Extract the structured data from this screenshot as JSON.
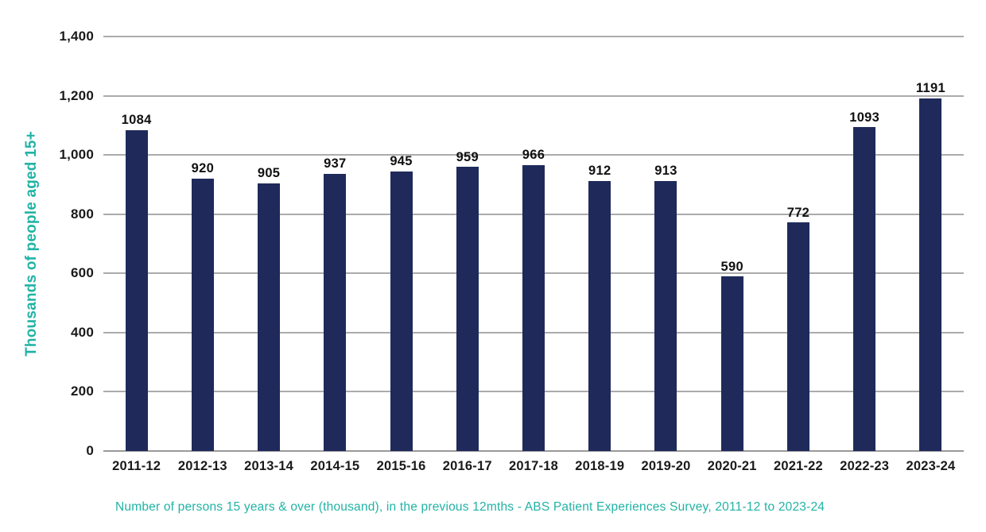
{
  "chart_data": {
    "type": "bar",
    "categories": [
      "2011-12",
      "2012-13",
      "2013-14",
      "2014-15",
      "2015-16",
      "2016-17",
      "2017-18",
      "2018-19",
      "2019-20",
      "2020-21",
      "2021-22",
      "2022-23",
      "2023-24"
    ],
    "values": [
      1084,
      920,
      905,
      937,
      945,
      959,
      966,
      912,
      913,
      590,
      772,
      1093,
      1191
    ],
    "value_labels": [
      "1084",
      "920",
      "905",
      "937",
      "945",
      "959",
      "966",
      "912",
      "913",
      "590",
      "772",
      "1093",
      "1191"
    ],
    "title": "",
    "xlabel": "",
    "ylabel": "Thousands of people aged 15+",
    "caption": "Number of persons 15 years & over (thousand), in the previous 12mths - ABS Patient Experiences Survey, 2011-12 to 2023-24",
    "ylim": [
      0,
      1400
    ],
    "ytick_step": 200,
    "yticks": [
      0,
      200,
      400,
      600,
      800,
      1000,
      1200,
      1400
    ],
    "ytick_labels": [
      "0",
      "200",
      "400",
      "600",
      "800",
      "1,000",
      "1,200",
      "1,400"
    ],
    "grid": true,
    "legend": "none",
    "colors": {
      "bar": "#1f2a5b",
      "accent_teal": "#21b3a5",
      "gridline": "#ababab",
      "text": "#1a1a1a"
    }
  }
}
